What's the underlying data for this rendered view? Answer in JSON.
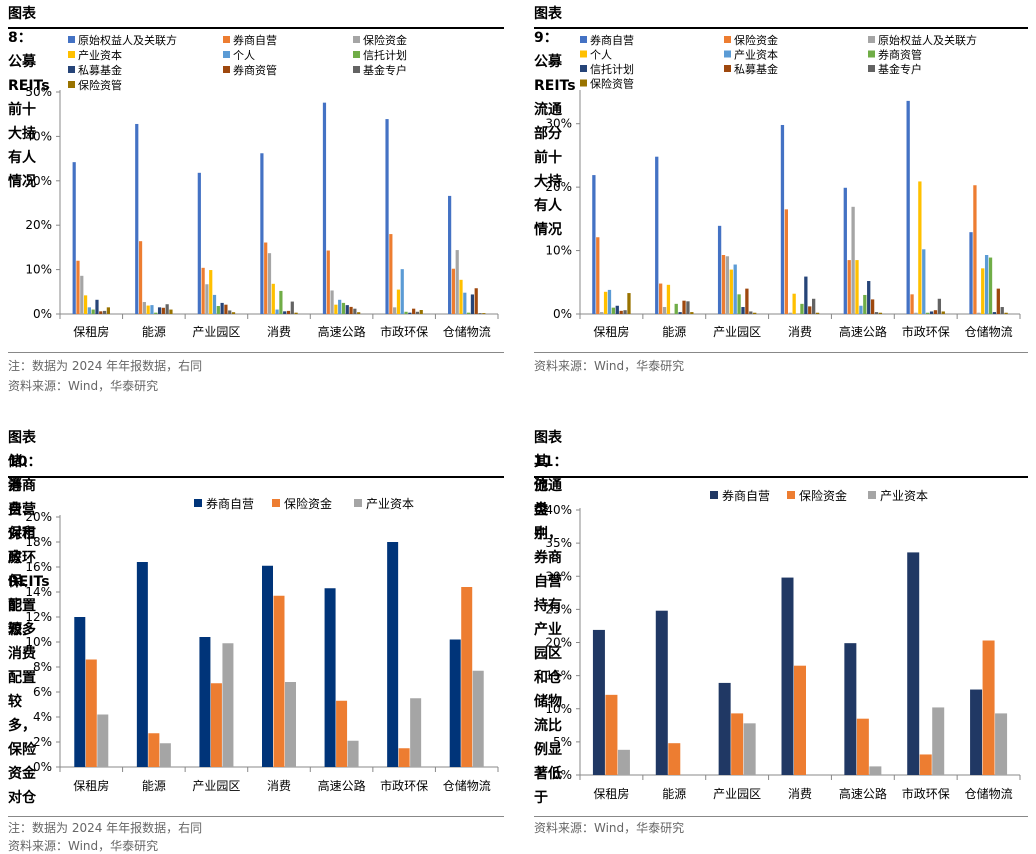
{
  "colors": {
    "c_original": "#4472C4",
    "c_broker": "#ED7D31",
    "c_insurance": "#A5A5A5",
    "c_industry": "#FFC000",
    "c_individual": "#5B9BD5",
    "c_trust": "#70AD47",
    "c_private": "#264478",
    "c_brokerasset": "#9E480E",
    "c_fund": "#636363",
    "c_insasset": "#997300",
    "c_navy": "#003479",
    "c_darknavy": "#203864",
    "c_orange": "#ED7D31",
    "c_gray": "#A5A5A5"
  },
  "panels": [
    {
      "title": "图表8： 公募 REITs 前十大持有人情况",
      "notes": [
        "注：数据为 2024 年年报数据，右同",
        "资料来源：Wind，华泰研究"
      ]
    },
    {
      "title": "图表9： 公募 REITs 流通部分前十大持有人情况",
      "notes": [
        "资料来源：Wind，华泰研究"
      ]
    },
    {
      "title_lines": [
        "图表10： 券商自营对市政环保、能源、消费配置较多，保险资金对仓",
        "储、消费、保租房 REITs 配置较多"
      ],
      "notes": [
        "注：数据为 2024 年年报数据，右同",
        "资料来源：Wind，华泰研究"
      ]
    },
    {
      "title_lines": [
        "图表11： 流通盘中，券商自营持有产业园区和仓储物流比例显著低于",
        "其他类别"
      ],
      "notes": [
        "资料来源：Wind，华泰研究"
      ]
    }
  ],
  "chart_data": [
    {
      "type": "bar",
      "categories": [
        "保租房",
        "能源",
        "产业园区",
        "消费",
        "高速公路",
        "市政环保",
        "仓储物流"
      ],
      "ylim": [
        0,
        50
      ],
      "yticks": [
        "0%",
        "10%",
        "20%",
        "30%",
        "40%",
        "50%"
      ],
      "legend_position": "top",
      "series": [
        {
          "name": "原始权益人及关联方",
          "color": "#4472C4",
          "values": [
            34.2,
            42.8,
            31.8,
            36.2,
            47.6,
            43.9,
            26.6
          ]
        },
        {
          "name": "券商自营",
          "color": "#ED7D31",
          "values": [
            12.0,
            16.4,
            10.4,
            16.1,
            14.3,
            18.0,
            10.2
          ]
        },
        {
          "name": "保险资金",
          "color": "#A5A5A5",
          "values": [
            8.6,
            2.7,
            6.7,
            13.7,
            5.3,
            1.5,
            14.4
          ]
        },
        {
          "name": "产业资本",
          "color": "#FFC000",
          "values": [
            4.2,
            1.9,
            9.9,
            6.8,
            2.1,
            5.5,
            7.7
          ]
        },
        {
          "name": "个人",
          "color": "#5B9BD5",
          "values": [
            1.5,
            2.0,
            4.3,
            1.0,
            3.2,
            10.1,
            4.8
          ]
        },
        {
          "name": "信托计划",
          "color": "#70AD47",
          "values": [
            1.0,
            0.3,
            1.8,
            5.2,
            2.5,
            0.5,
            0.3
          ]
        },
        {
          "name": "私募基金",
          "color": "#264478",
          "values": [
            3.2,
            1.5,
            2.5,
            0.6,
            2.0,
            0.3,
            4.4
          ]
        },
        {
          "name": "券商资管",
          "color": "#9E480E",
          "values": [
            0.6,
            1.4,
            2.1,
            0.7,
            1.6,
            1.2,
            5.8
          ]
        },
        {
          "name": "基金专户",
          "color": "#636363",
          "values": [
            0.7,
            2.2,
            0.8,
            2.8,
            1.2,
            0.5,
            0.2
          ]
        },
        {
          "name": "保险资管",
          "color": "#997300",
          "values": [
            1.5,
            1.0,
            0.4,
            0.3,
            0.4,
            0.9,
            0.2
          ]
        }
      ]
    },
    {
      "type": "bar",
      "categories": [
        "保租房",
        "能源",
        "产业园区",
        "消费",
        "高速公路",
        "市政环保",
        "仓储物流"
      ],
      "ylim": [
        0,
        35
      ],
      "yticks": [
        "0%",
        "10%",
        "20%",
        "30%"
      ],
      "legend_position": "top",
      "series": [
        {
          "name": "券商自营",
          "color": "#4472C4",
          "values": [
            21.9,
            24.8,
            13.9,
            29.8,
            19.9,
            33.6,
            12.9
          ]
        },
        {
          "name": "保险资金",
          "color": "#ED7D31",
          "values": [
            12.1,
            4.8,
            9.3,
            16.5,
            8.5,
            3.1,
            20.3
          ]
        },
        {
          "name": "原始权益人及关联方",
          "color": "#A5A5A5",
          "values": [
            0.3,
            1.1,
            9.1,
            0.2,
            16.9,
            0.2,
            0.2
          ]
        },
        {
          "name": "个人",
          "color": "#FFC000",
          "values": [
            3.5,
            4.6,
            7.0,
            3.2,
            8.5,
            20.9,
            7.2
          ]
        },
        {
          "name": "产业资本",
          "color": "#5B9BD5",
          "values": [
            3.8,
            0.0,
            7.8,
            0.0,
            1.3,
            10.2,
            9.3
          ]
        },
        {
          "name": "券商资管",
          "color": "#70AD47",
          "values": [
            1.0,
            1.6,
            3.1,
            1.6,
            3.0,
            0.2,
            8.9
          ]
        },
        {
          "name": "信托计划",
          "color": "#264478",
          "values": [
            1.3,
            0.3,
            1.1,
            5.9,
            5.2,
            0.4,
            0.3
          ]
        },
        {
          "name": "私募基金",
          "color": "#9E480E",
          "values": [
            0.5,
            2.1,
            4.0,
            1.2,
            2.3,
            0.6,
            4.0
          ]
        },
        {
          "name": "基金专户",
          "color": "#636363",
          "values": [
            0.6,
            2.0,
            0.4,
            2.4,
            0.3,
            2.4,
            1.1
          ]
        },
        {
          "name": "保险资管",
          "color": "#997300",
          "values": [
            3.3,
            0.3,
            0.2,
            0.2,
            0.2,
            0.4,
            0.2
          ]
        }
      ]
    },
    {
      "type": "bar",
      "categories": [
        "保租房",
        "能源",
        "产业园区",
        "消费",
        "高速公路",
        "市政环保",
        "仓储物流"
      ],
      "ylim": [
        0,
        20
      ],
      "yticks": [
        "0%",
        "2%",
        "4%",
        "6%",
        "8%",
        "10%",
        "12%",
        "14%",
        "16%",
        "18%",
        "20%"
      ],
      "legend_position": "top",
      "series": [
        {
          "name": "券商自营",
          "color": "#003479",
          "values": [
            12.0,
            16.4,
            10.4,
            16.1,
            14.3,
            18.0,
            10.2
          ]
        },
        {
          "name": "保险资金",
          "color": "#ED7D31",
          "values": [
            8.6,
            2.7,
            6.7,
            13.7,
            5.3,
            1.5,
            14.4
          ]
        },
        {
          "name": "产业资本",
          "color": "#A5A5A5",
          "values": [
            4.2,
            1.9,
            9.9,
            6.8,
            2.1,
            5.5,
            7.7
          ]
        }
      ]
    },
    {
      "type": "bar",
      "categories": [
        "保租房",
        "能源",
        "产业园区",
        "消费",
        "高速公路",
        "市政环保",
        "仓储物流"
      ],
      "ylim": [
        0,
        40
      ],
      "yticks": [
        "0%",
        "5%",
        "10%",
        "15%",
        "20%",
        "25%",
        "30%",
        "35%",
        "40%"
      ],
      "legend_position": "top",
      "series": [
        {
          "name": "券商自营",
          "color": "#203864",
          "values": [
            21.9,
            24.8,
            13.9,
            29.8,
            19.9,
            33.6,
            12.9
          ]
        },
        {
          "name": "保险资金",
          "color": "#ED7D31",
          "values": [
            12.1,
            4.8,
            9.3,
            16.5,
            8.5,
            3.1,
            20.3
          ]
        },
        {
          "name": "产业资本",
          "color": "#A5A5A5",
          "values": [
            3.8,
            0.0,
            7.8,
            0.0,
            1.3,
            10.2,
            9.3
          ]
        }
      ]
    }
  ]
}
